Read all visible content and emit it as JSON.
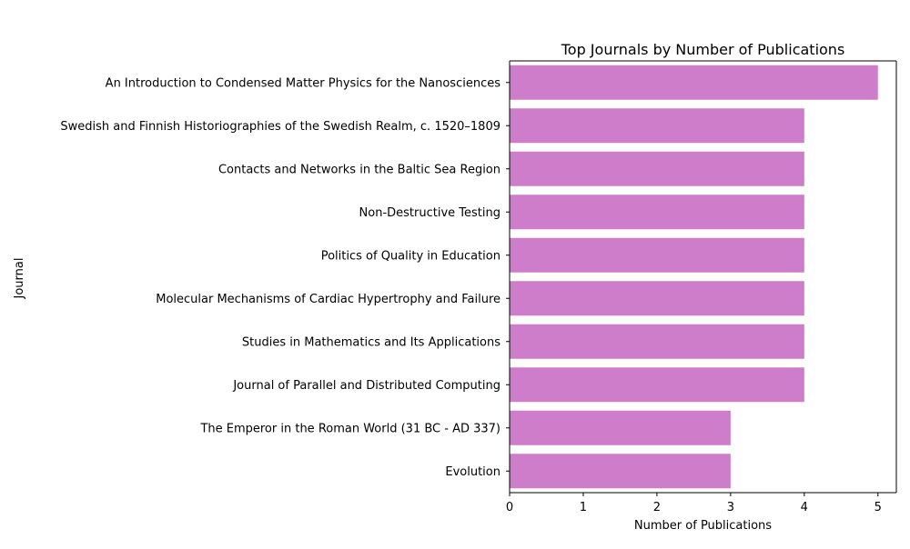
{
  "chart_data": {
    "type": "bar",
    "orientation": "horizontal",
    "title": "Top Journals by Number of Publications",
    "xlabel": "Number of Publications",
    "ylabel": "Journal",
    "categories": [
      "An Introduction to Condensed Matter Physics for the Nanosciences",
      "Swedish and Finnish Historiographies of the Swedish Realm, c. 1520–1809",
      "Contacts and Networks in the Baltic Sea Region",
      "Non-Destructive Testing",
      "Politics of Quality in Education",
      "Molecular Mechanisms of Cardiac Hypertrophy and Failure",
      "Studies in Mathematics and Its Applications",
      "Journal of Parallel and Distributed Computing",
      "The Emperor in the Roman World (31 BC - AD 337)",
      "Evolution"
    ],
    "values": [
      5,
      4,
      4,
      4,
      4,
      4,
      4,
      4,
      3,
      3
    ],
    "xlim": [
      0,
      5.25
    ],
    "xticks": [
      0,
      1,
      2,
      3,
      4,
      5
    ],
    "bar_color": "#cd7dca",
    "grid": false
  }
}
